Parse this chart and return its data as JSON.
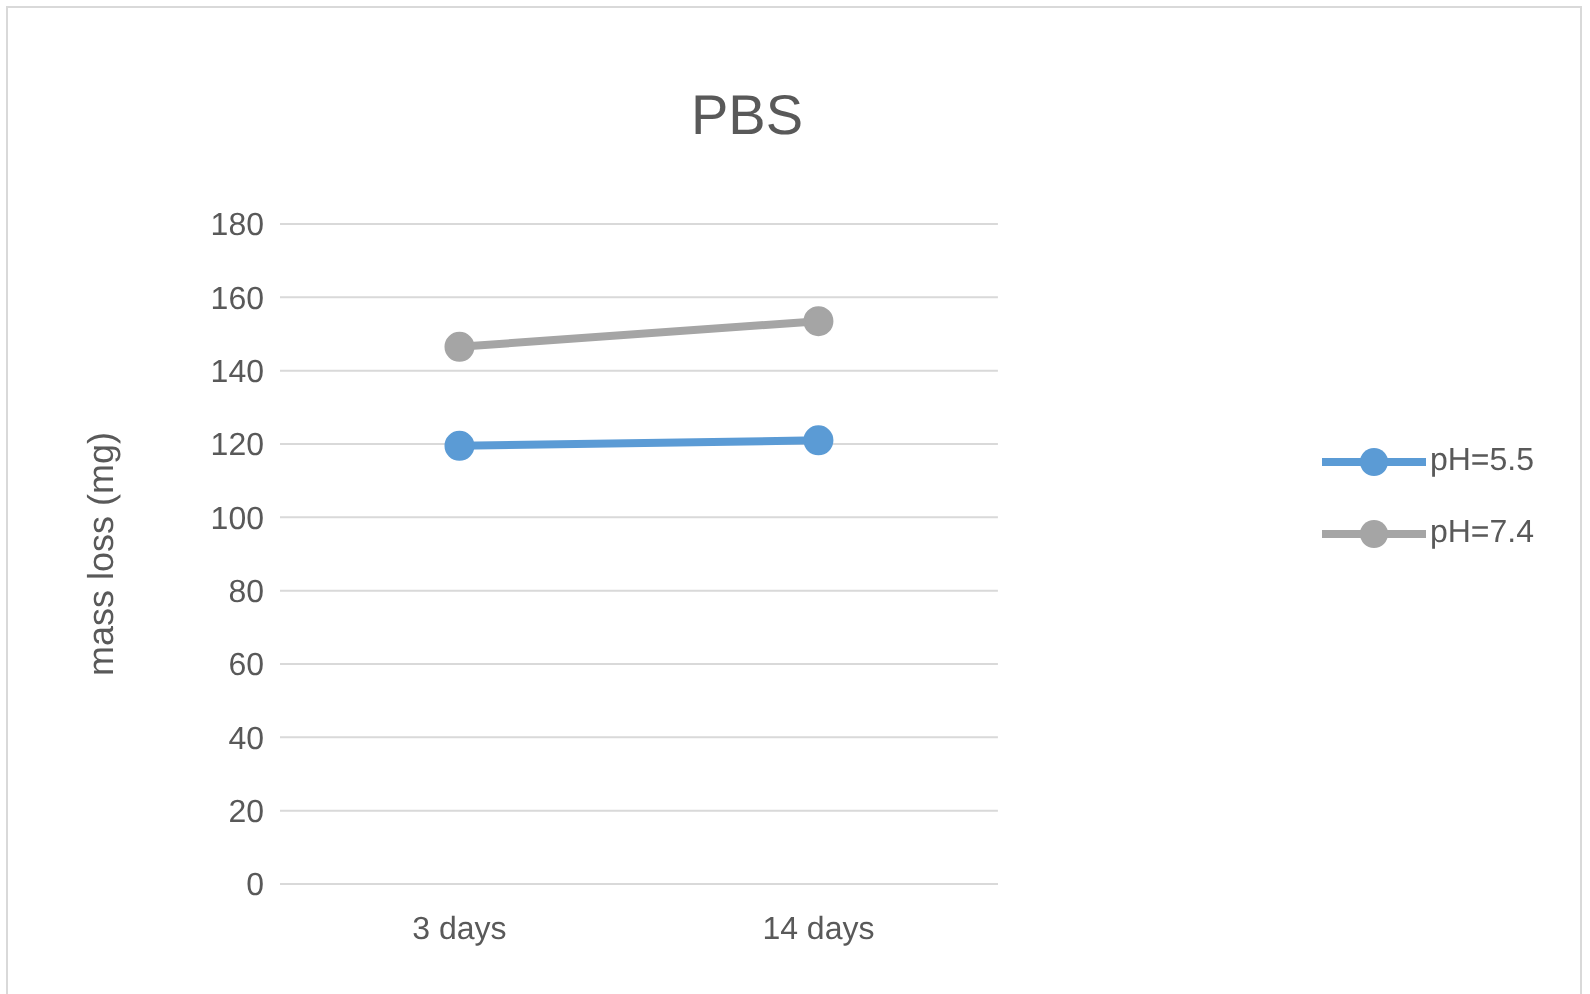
{
  "chart_data": {
    "type": "line",
    "title": "PBS",
    "ylabel": "mass loss (mg)",
    "categories": [
      "3 days",
      "14 days"
    ],
    "series": [
      {
        "name": "pH=5.5",
        "color": "#5b9bd5",
        "values": [
          119.5,
          121
        ]
      },
      {
        "name": "pH=7.4",
        "color": "#a5a5a5",
        "values": [
          146.5,
          153.5
        ]
      }
    ],
    "ylim": [
      0,
      180
    ],
    "yticks": [
      0,
      20,
      40,
      60,
      80,
      100,
      120,
      140,
      160,
      180
    ],
    "grid": "y",
    "legend": "right",
    "marker": "circle",
    "line_style": "solid"
  }
}
